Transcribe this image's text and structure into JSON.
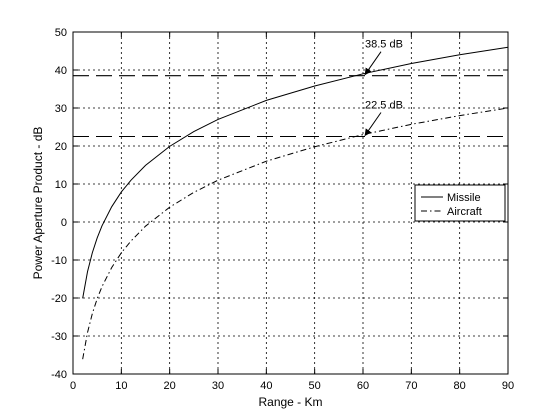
{
  "chart_data": {
    "type": "line",
    "title": "",
    "xlabel": "Range - Km",
    "ylabel": "Power Aperture Product - dB",
    "xlim": [
      0,
      90
    ],
    "ylim": [
      -40,
      50
    ],
    "x_ticks": [
      0,
      10,
      20,
      30,
      40,
      50,
      60,
      70,
      80,
      90
    ],
    "y_ticks": [
      -40,
      -30,
      -20,
      -10,
      0,
      10,
      20,
      30,
      40,
      50
    ],
    "grid": true,
    "legend_position": "right",
    "series": [
      {
        "name": "Missile",
        "style": "solid",
        "x": [
          2,
          3,
          4,
          5,
          6,
          8,
          10,
          12,
          15,
          20,
          25,
          30,
          40,
          50,
          60,
          70,
          80,
          90
        ],
        "y": [
          -20.1,
          -13.1,
          -8.1,
          -4.2,
          -1.0,
          4.0,
          7.9,
          11.0,
          14.9,
          19.9,
          23.8,
          27.0,
          32.0,
          35.8,
          39.0,
          41.7,
          44.0,
          46.0
        ]
      },
      {
        "name": "Aircraft",
        "style": "dashdot",
        "x": [
          2,
          3,
          4,
          5,
          6,
          8,
          10,
          12,
          15,
          20,
          25,
          30,
          40,
          50,
          60,
          70,
          80,
          90
        ],
        "y": [
          -36.1,
          -29.1,
          -24.1,
          -20.2,
          -17.0,
          -12.0,
          -8.1,
          -5.0,
          -1.1,
          3.9,
          7.8,
          11.0,
          16.0,
          19.8,
          23.0,
          25.7,
          28.0,
          30.0
        ]
      }
    ],
    "reference_lines": [
      {
        "y": 38.5,
        "label": "38.5 dB",
        "arrow_x": 60
      },
      {
        "y": 22.5,
        "label": "22.5 dB",
        "arrow_x": 60
      }
    ]
  }
}
